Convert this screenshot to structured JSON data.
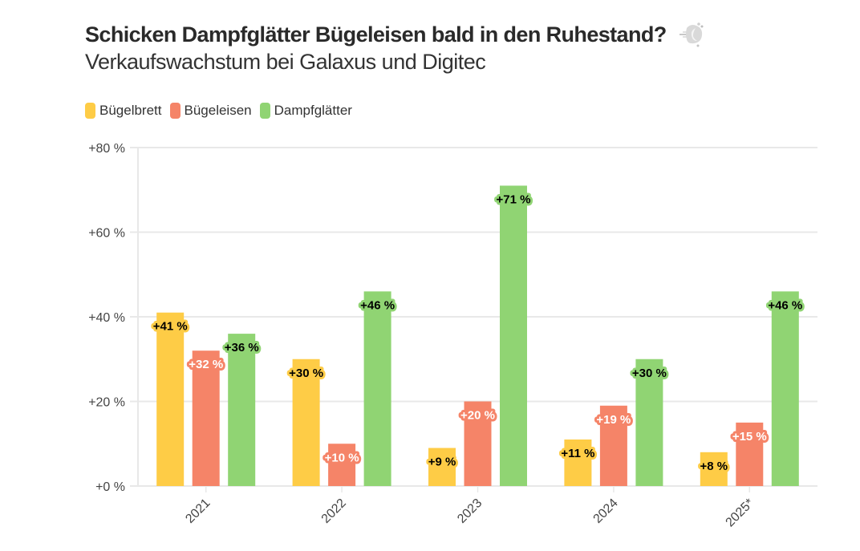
{
  "header": {
    "title": "Schicken Dampfglätter Bügeleisen bald in den Ruhestand?",
    "title_icon": "steam-dash-icon",
    "subtitle": "Verkaufswachstum bei Galaxus und Digitec"
  },
  "legend": [
    {
      "label": "Bügelbrett",
      "color": "#FECC46"
    },
    {
      "label": "Bügeleisen",
      "color": "#F58468"
    },
    {
      "label": "Dampfglätter",
      "color": "#90D473"
    }
  ],
  "chart_data": {
    "type": "bar",
    "title": "Schicken Dampfglätter Bügeleisen bald in den Ruhestand?",
    "subtitle": "Verkaufswachstum bei Galaxus und Digitec",
    "xlabel": "",
    "ylabel": "",
    "categories": [
      "2021",
      "2022",
      "2023",
      "2024",
      "2025*"
    ],
    "series": [
      {
        "name": "Bügelbrett",
        "color": "#FECC46",
        "label_text_color": "#000000",
        "values": [
          41,
          30,
          9,
          11,
          8
        ]
      },
      {
        "name": "Bügeleisen",
        "color": "#F58468",
        "label_text_color": "#FFFFFF",
        "values": [
          32,
          10,
          20,
          19,
          15
        ]
      },
      {
        "name": "Dampfglätter",
        "color": "#90D473",
        "label_text_color": "#000000",
        "values": [
          36,
          46,
          71,
          30,
          46
        ]
      }
    ],
    "ylim": [
      0,
      80
    ],
    "yticks": [
      0,
      20,
      40,
      60,
      80
    ],
    "ytick_labels": [
      "+0 %",
      "+20 %",
      "+40 %",
      "+60 %",
      "+80 %"
    ],
    "value_label_format": "+{v} %",
    "grid": true,
    "legend_position": "top-left",
    "xtick_rotation": "-45deg"
  }
}
